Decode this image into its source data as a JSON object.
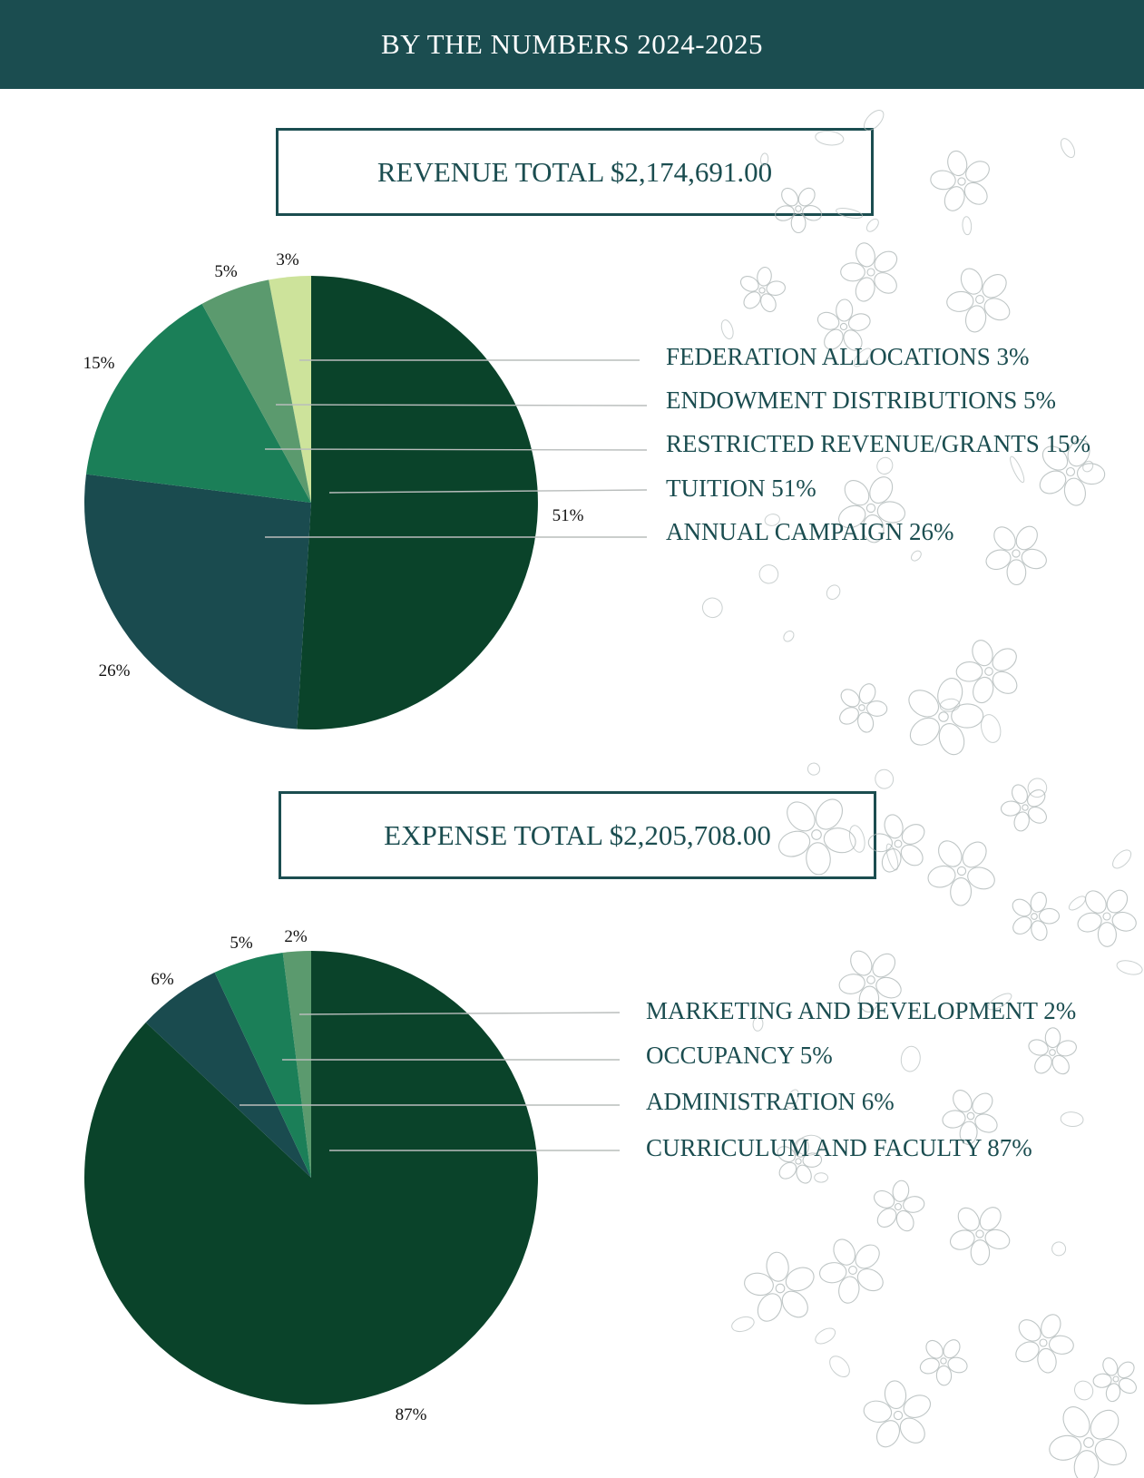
{
  "header": {
    "title": "BY THE NUMBERS 2024-2025"
  },
  "revenue": {
    "total_label": "REVENUE TOTAL $2,174,691.00"
  },
  "expense": {
    "total_label": "EXPENSE TOTAL $2,205,708.00"
  },
  "colors": {
    "header_bg": "#1b4d50",
    "slice_dark_green": "#0a432a",
    "slice_dark_teal": "#1a4b4f",
    "slice_green": "#1b7f58",
    "slice_muted_green": "#5b9a6e",
    "slice_pale_green": "#cde39b"
  },
  "chart_data": [
    {
      "type": "pie",
      "categories": [
        "FEDERATION ALLOCATIONS",
        "TUITION",
        "ANNUAL CAMPAIGN",
        "RESTRICTED REVENUE/GRANTS",
        "ENDOWMENT DISTRIBUTIONS"
      ],
      "values": [
        3,
        51,
        26,
        15,
        5
      ],
      "slice_labels": [
        "3%",
        "51%",
        "26%",
        "15%",
        "5%"
      ],
      "colors": [
        "#cde39b",
        "#0a432a",
        "#1a4b4f",
        "#1b7f58",
        "#5b9a6e"
      ],
      "legend": [
        "FEDERATION ALLOCATIONS 3%",
        "ENDOWMENT DISTRIBUTIONS 5%",
        "RESTRICTED REVENUE/GRANTS 15%",
        "TUITION 51%",
        "ANNUAL CAMPAIGN 26%"
      ],
      "legend_placement": "right"
    },
    {
      "type": "pie",
      "categories": [
        "MARKETING AND DEVELOPMENT",
        "CURRICULUM AND FACULTY",
        "ADMINISTRATION",
        "OCCUPANCY"
      ],
      "values": [
        2,
        87,
        6,
        5
      ],
      "slice_labels": [
        "2%",
        "87%",
        "6%",
        "5%"
      ],
      "colors": [
        "#5b9a6e",
        "#0a432a",
        "#1a4b4f",
        "#1b7f58"
      ],
      "legend": [
        "MARKETING AND DEVELOPMENT 2%",
        "OCCUPANCY 5%",
        "ADMINISTRATION 6%",
        "CURRICULUM AND FACULTY 87%"
      ],
      "legend_placement": "right"
    }
  ]
}
